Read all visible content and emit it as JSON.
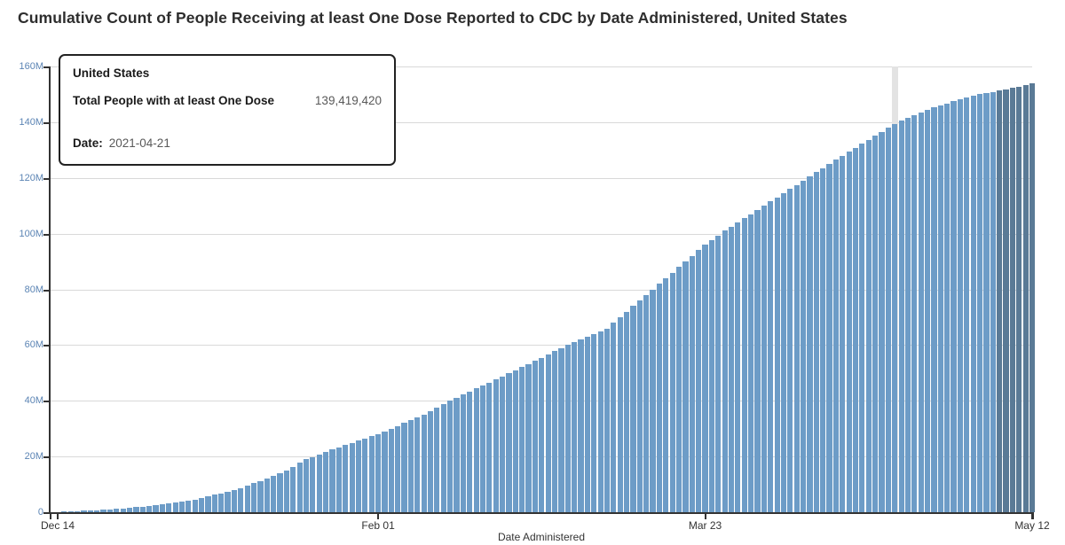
{
  "title": "Cumulative Count of People Receiving at least One Dose Reported to CDC by Date Administered, United States",
  "tooltip": {
    "region": "United States",
    "metric_label": "Total People with at least One Dose",
    "metric_value": "139,419,420",
    "date_label": "Date:",
    "date_value": "2021-04-21"
  },
  "axes": {
    "x_label": "Date Administered",
    "x_ticks": [
      {
        "label": "Dec 14",
        "day": 0
      },
      {
        "label": "Feb 01",
        "day": 49
      },
      {
        "label": "Mar 23",
        "day": 99
      },
      {
        "label": "May 12",
        "day": 149
      }
    ],
    "y_ticks": [
      "0",
      "20M",
      "40M",
      "60M",
      "80M",
      "100M",
      "120M",
      "140M",
      "160M"
    ],
    "y_max_millions": 160
  },
  "colors": {
    "bar": "#6d9cc7",
    "bar_recent": "#5a7a96",
    "highlight_band": "#e3e3e3",
    "axis": "#333333",
    "gridline": "#d9d9d9",
    "y_label": "#5b84b4",
    "x_label": "#333333",
    "title": "#2d2d2d"
  },
  "chart_data": {
    "type": "bar",
    "title": "Cumulative Count of People Receiving at least One Dose Reported to CDC by Date Administered, United States",
    "xlabel": "Date Administered",
    "ylabel": "",
    "x_start_date": "2020-12-14",
    "x_end_date": "2021-05-12",
    "x_unit": "one bar per day",
    "ylim_millions": [
      0,
      160
    ],
    "grid": "horizontal",
    "unit": "people, millions",
    "values_millions": [
      0.06,
      0.18,
      0.3,
      0.42,
      0.54,
      0.66,
      0.78,
      0.9,
      1.07,
      1.24,
      1.41,
      1.59,
      1.76,
      1.93,
      2.1,
      2.46,
      2.81,
      3.17,
      3.53,
      3.89,
      4.24,
      4.6,
      5.16,
      5.71,
      6.27,
      6.83,
      7.39,
      7.94,
      8.5,
      9.43,
      10.36,
      11.29,
      12.21,
      13.14,
      14.07,
      15.0,
      16.33,
      17.67,
      19.0,
      19.88,
      20.75,
      21.63,
      22.5,
      23.29,
      24.07,
      24.86,
      25.64,
      26.43,
      27.21,
      28.0,
      29.0,
      30.0,
      31.0,
      32.0,
      33.0,
      34.0,
      35.0,
      36.25,
      37.5,
      38.75,
      40.0,
      41.1,
      42.2,
      43.3,
      44.4,
      45.5,
      46.6,
      47.7,
      48.8,
      49.9,
      51.0,
      52.13,
      53.25,
      54.38,
      55.5,
      56.63,
      57.75,
      58.88,
      60.0,
      61.0,
      62.0,
      63.0,
      64.0,
      65.0,
      66.0,
      68.0,
      70.0,
      72.0,
      74.0,
      76.0,
      78.0,
      80.0,
      82.0,
      84.0,
      86.0,
      88.0,
      90.0,
      92.0,
      94.0,
      96.0,
      97.67,
      99.33,
      101.0,
      102.5,
      104.0,
      105.5,
      107.0,
      108.5,
      110.0,
      111.5,
      113.0,
      114.5,
      116.0,
      117.5,
      119.0,
      120.5,
      122.0,
      123.5,
      125.0,
      126.5,
      128.0,
      129.43,
      130.86,
      132.28,
      133.71,
      135.14,
      136.57,
      137.99,
      139.42,
      140.44,
      141.45,
      142.47,
      143.48,
      144.5,
      145.25,
      146.0,
      146.75,
      147.5,
      148.13,
      148.75,
      149.38,
      150.0,
      150.45,
      150.9,
      151.35,
      151.8,
      152.3,
      152.8,
      153.3,
      153.8
    ],
    "highlight": {
      "day_index": 128,
      "date": "2021-04-21",
      "value": 139419420
    },
    "recent_dark_bar_count": 6
  }
}
